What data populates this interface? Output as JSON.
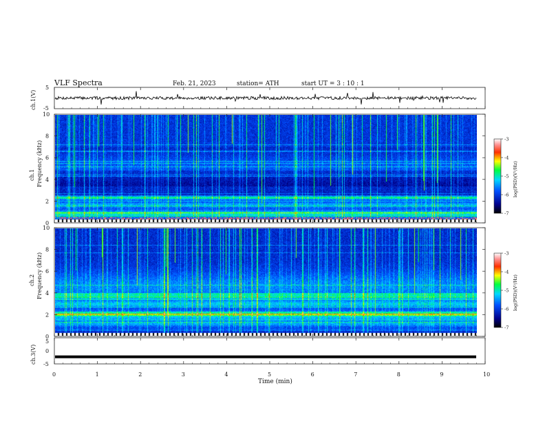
{
  "header": {
    "title": "VLF  Spectra",
    "date": "Feb. 21, 2023",
    "station": "station= ATH",
    "start": "start  UT  =    3  : 10 : 1"
  },
  "chart_data": [
    {
      "type": "line",
      "name": "ch1-voltage",
      "ylabel": "ch.1(V)",
      "ylim": [
        -5,
        5
      ],
      "yticks": [
        "5",
        "-5"
      ],
      "xlim": [
        0,
        10
      ],
      "note_values": {
        "baseline": 0,
        "amplitude_approx": 1.2
      }
    },
    {
      "type": "heatmap",
      "name": "ch1-spectrogram",
      "ylabel": "ch.1\nFrequency (kHz)",
      "ylabel_lines": [
        "ch.1",
        "Frequency (kHz)"
      ],
      "ylim": [
        0,
        10
      ],
      "yticks": [
        "0",
        "2",
        "4",
        "6",
        "8",
        "10"
      ],
      "xlim": [
        0,
        9.82
      ],
      "colorbar": {
        "label": "log(PSD)(V²/Hz)",
        "range": [
          -7,
          -3
        ],
        "ticks": [
          "-3",
          "-4",
          "-5",
          "-6",
          "-7"
        ]
      }
    },
    {
      "type": "heatmap",
      "name": "ch2-spectrogram",
      "ylabel_lines": [
        "ch.2",
        "Frequency (kHz)"
      ],
      "ylim": [
        0,
        10
      ],
      "yticks": [
        "0",
        "2",
        "4",
        "6",
        "8",
        "10"
      ],
      "xlim": [
        0,
        9.82
      ],
      "colorbar": {
        "label": "log(PSD)(V²/Hz)",
        "range": [
          -7,
          -3
        ],
        "ticks": [
          "-3",
          "-4",
          "-5",
          "-6",
          "-7"
        ]
      }
    },
    {
      "type": "line",
      "name": "ch3-voltage",
      "ylabel": "ch.3(V)",
      "ylim": [
        -5,
        5
      ],
      "yticks": [
        "5",
        "0",
        "-5"
      ],
      "xlim": [
        0,
        10
      ],
      "values_approx": {
        "level": -2.3
      }
    }
  ],
  "xaxis": {
    "label": "Time  (min)",
    "ticks": [
      "0",
      "1",
      "2",
      "3",
      "4",
      "5",
      "6",
      "7",
      "8",
      "9",
      "10"
    ]
  },
  "colors": {
    "background_low": "#00008b",
    "mid": "#0050ff",
    "high": "#00d8ff",
    "peak": "#40ff40"
  }
}
